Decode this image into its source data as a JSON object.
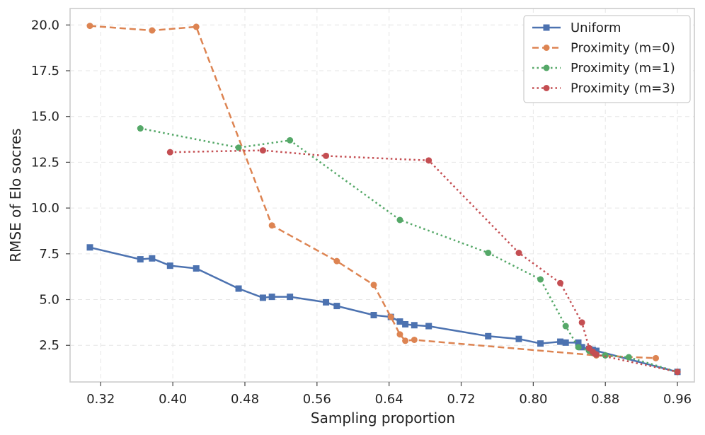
{
  "chart_data": {
    "type": "line",
    "title": "",
    "xlabel": "Sampling proportion",
    "ylabel": "RMSE of Elo socres",
    "xlim": [
      0.286,
      0.9788
    ],
    "ylim": [
      0.5,
      20.9
    ],
    "xticks": [
      0.32,
      0.4,
      0.48,
      0.56,
      0.64,
      0.72,
      0.8,
      0.88,
      0.96
    ],
    "xtick_labels": [
      "0.32",
      "0.40",
      "0.48",
      "0.56",
      "0.64",
      "0.72",
      "0.80",
      "0.88",
      "0.96"
    ],
    "yticks": [
      2.5,
      5.0,
      7.5,
      10.0,
      12.5,
      15.0,
      17.5,
      20.0
    ],
    "ytick_labels": [
      "2.5",
      "5.0",
      "7.5",
      "10.0",
      "12.5",
      "15.0",
      "17.5",
      "20.0"
    ],
    "grid": true,
    "legend_position": "top-right",
    "series": [
      {
        "name": "Uniform",
        "color": "#4c72b0",
        "dash": "solid",
        "marker": "square",
        "x": [
          0.308,
          0.364,
          0.377,
          0.397,
          0.426,
          0.473,
          0.5,
          0.51,
          0.53,
          0.57,
          0.582,
          0.623,
          0.642,
          0.652,
          0.658,
          0.668,
          0.684,
          0.75,
          0.784,
          0.808,
          0.83,
          0.836,
          0.85,
          0.854,
          0.862,
          0.866,
          0.87,
          0.96
        ],
        "y": [
          7.85,
          7.2,
          7.25,
          6.85,
          6.7,
          5.6,
          5.1,
          5.15,
          5.15,
          4.85,
          4.65,
          4.15,
          4.05,
          3.8,
          3.65,
          3.6,
          3.55,
          3.0,
          2.85,
          2.6,
          2.7,
          2.65,
          2.65,
          2.4,
          2.3,
          2.25,
          2.2,
          1.05
        ]
      },
      {
        "name": "Proximity (m=0)",
        "color": "#dd8452",
        "dash": "dashed",
        "marker": "circle",
        "x": [
          0.308,
          0.377,
          0.426,
          0.51,
          0.582,
          0.623,
          0.642,
          0.652,
          0.658,
          0.668,
          0.87,
          0.936
        ],
        "y": [
          19.95,
          19.7,
          19.9,
          9.05,
          7.1,
          5.8,
          4.05,
          3.1,
          2.75,
          2.8,
          1.95,
          1.8
        ]
      },
      {
        "name": "Proximity (m=1)",
        "color": "#55a868",
        "dash": "dotted",
        "marker": "circle",
        "x": [
          0.364,
          0.473,
          0.53,
          0.652,
          0.75,
          0.808,
          0.836,
          0.85,
          0.862,
          0.866,
          0.87,
          0.88,
          0.906,
          0.96
        ],
        "y": [
          14.35,
          13.3,
          13.7,
          9.35,
          7.55,
          6.1,
          3.55,
          2.4,
          2.2,
          2.1,
          2.0,
          1.95,
          1.85,
          1.05
        ]
      },
      {
        "name": "Proximity (m=3)",
        "color": "#c44e52",
        "dash": "dotted",
        "marker": "circle",
        "x": [
          0.397,
          0.5,
          0.57,
          0.684,
          0.784,
          0.83,
          0.854,
          0.862,
          0.866,
          0.868,
          0.87,
          0.96
        ],
        "y": [
          13.05,
          13.15,
          12.85,
          12.6,
          7.55,
          5.9,
          3.75,
          2.35,
          2.15,
          2.05,
          2.0,
          1.05
        ]
      }
    ]
  }
}
